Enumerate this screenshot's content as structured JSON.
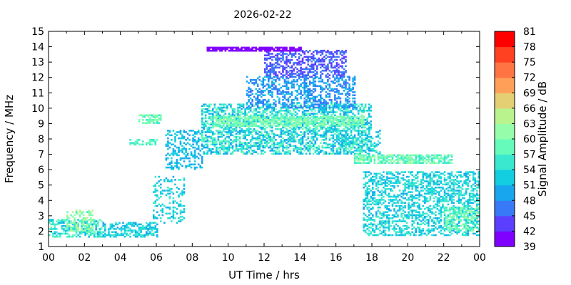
{
  "chart_data": {
    "type": "heatmap",
    "title": "2026-02-22",
    "xlabel": "UT Time / hrs",
    "ylabel": "Frequency / MHz",
    "colorbar_label": "Signal Amplitude / dB",
    "xlim": [
      0,
      24
    ],
    "ylim": [
      1,
      15
    ],
    "x_ticks": [
      "00",
      "02",
      "04",
      "06",
      "08",
      "10",
      "12",
      "14",
      "16",
      "18",
      "20",
      "22",
      "00"
    ],
    "y_ticks": [
      "1",
      "2",
      "3",
      "4",
      "5",
      "6",
      "7",
      "8",
      "9",
      "10",
      "11",
      "12",
      "13",
      "14",
      "15"
    ],
    "colorbar": {
      "min": 39,
      "max": 81,
      "ticks": [
        "39",
        "42",
        "45",
        "48",
        "51",
        "54",
        "57",
        "60",
        "63",
        "66",
        "69",
        "72",
        "75",
        "78",
        "81"
      ],
      "colors": [
        "#8000ff",
        "#5a3ffe",
        "#3879f8",
        "#18a6ee",
        "#13cde0",
        "#3ae8cf",
        "#66fbbb",
        "#96feaa",
        "#b8f38e",
        "#e5cf75",
        "#ff9f58",
        "#ff7442",
        "#ff4021",
        "#ff0000"
      ]
    },
    "regions": [
      {
        "t": [
          0.0,
          3.0
        ],
        "f": [
          1.6,
          2.8
        ],
        "amp": [
          50,
          60
        ],
        "density": 0.55
      },
      {
        "t": [
          1.0,
          2.5
        ],
        "f": [
          2.0,
          3.4
        ],
        "amp": [
          56,
          66
        ],
        "density": 0.45
      },
      {
        "t": [
          3.0,
          6.0
        ],
        "f": [
          1.6,
          2.6
        ],
        "amp": [
          50,
          56
        ],
        "density": 0.55
      },
      {
        "t": [
          4.5,
          6.0
        ],
        "f": [
          7.6,
          7.9
        ],
        "amp": [
          54,
          60
        ],
        "density": 0.6
      },
      {
        "t": [
          5.0,
          6.2
        ],
        "f": [
          9.0,
          9.5
        ],
        "amp": [
          56,
          62
        ],
        "density": 0.6
      },
      {
        "t": [
          5.8,
          7.5
        ],
        "f": [
          2.5,
          5.5
        ],
        "amp": [
          50,
          56
        ],
        "density": 0.25
      },
      {
        "t": [
          6.5,
          8.5
        ],
        "f": [
          6.0,
          8.5
        ],
        "amp": [
          48,
          54
        ],
        "density": 0.4
      },
      {
        "t": [
          8.5,
          18.0
        ],
        "f": [
          7.0,
          10.2
        ],
        "amp": [
          48,
          60
        ],
        "density": 0.55
      },
      {
        "t": [
          9.0,
          17.5
        ],
        "f": [
          8.8,
          9.4
        ],
        "amp": [
          56,
          63
        ],
        "density": 0.7
      },
      {
        "t": [
          11.0,
          17.0
        ],
        "f": [
          10.0,
          12.0
        ],
        "amp": [
          45,
          52
        ],
        "density": 0.45
      },
      {
        "t": [
          12.0,
          16.5
        ],
        "f": [
          12.0,
          13.7
        ],
        "amp": [
          42,
          48
        ],
        "density": 0.5
      },
      {
        "t": [
          8.8,
          14.0
        ],
        "f": [
          13.7,
          13.95
        ],
        "amp": [
          39,
          42
        ],
        "density": 0.9
      },
      {
        "t": [
          16.0,
          18.5
        ],
        "f": [
          7.0,
          8.5
        ],
        "amp": [
          50,
          58
        ],
        "density": 0.4
      },
      {
        "t": [
          17.0,
          22.5
        ],
        "f": [
          6.4,
          6.9
        ],
        "amp": [
          54,
          63
        ],
        "density": 0.75
      },
      {
        "t": [
          17.5,
          24.0
        ],
        "f": [
          1.7,
          5.8
        ],
        "amp": [
          50,
          57
        ],
        "density": 0.45
      },
      {
        "t": [
          22.0,
          24.0
        ],
        "f": [
          2.0,
          3.6
        ],
        "amp": [
          55,
          63
        ],
        "density": 0.5
      }
    ]
  }
}
